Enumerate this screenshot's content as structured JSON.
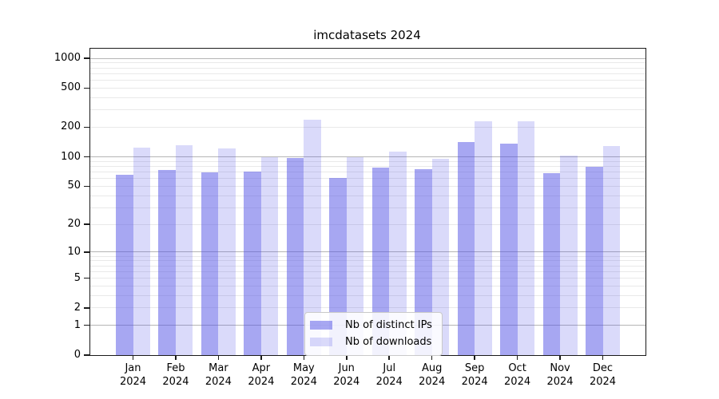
{
  "page": {
    "background": "#ffffff"
  },
  "chart_data": {
    "type": "bar",
    "title": "imcdatasets 2024",
    "categories": [
      "Jan",
      "Feb",
      "Mar",
      "Apr",
      "May",
      "Jun",
      "Jul",
      "Aug",
      "Sep",
      "Oct",
      "Nov",
      "Dec"
    ],
    "category_year": "2024",
    "series": [
      {
        "name": "Nb of distinct IPs",
        "color": "rgba(80,80,230,0.50)",
        "values": [
          66,
          74,
          69,
          70,
          97,
          61,
          77,
          75,
          142,
          135,
          68,
          79
        ]
      },
      {
        "name": "Nb of downloads",
        "color": "rgba(80,80,230,0.21)",
        "values": [
          125,
          132,
          122,
          100,
          240,
          100,
          113,
          95,
          228,
          228,
          102,
          130
        ]
      }
    ],
    "yscale": "log1p",
    "yticks": [
      0,
      1,
      2,
      5,
      10,
      20,
      50,
      100,
      200,
      500,
      1000
    ],
    "ylim": [
      0,
      1250
    ],
    "grid": true,
    "legend_position": "lower center",
    "axis_color": "#1a1a1a",
    "major_grid_color": "#b5b5b5",
    "minor_grid_color": "#e9e9e9"
  }
}
